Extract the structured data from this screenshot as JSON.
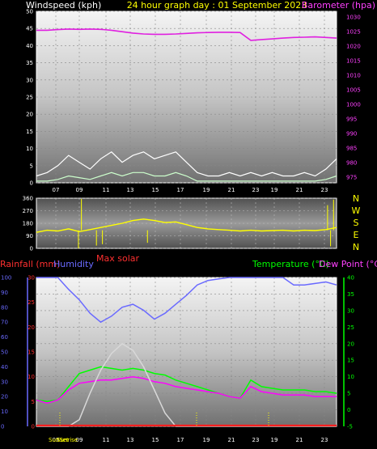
{
  "header": {
    "left_label": "Windspeed (kph)",
    "center_label": "24 hour graph day : 01 September 2023",
    "right_label": "Barometer (hpa)"
  },
  "colors": {
    "background": "#000000",
    "grid": "#888888",
    "wind_avg": "#ccffcc",
    "wind_gust": "#ffffff",
    "barometer": "#e020e0",
    "direction": "#ffff00",
    "humidity": "#6a6aff",
    "temperature": "#00ff00",
    "dewpoint": "#ff00ff",
    "solar": "#d8d8d8",
    "rainfall": "#ff2020",
    "yellow_text": "#ffff00",
    "red_text": "#ff3030",
    "green_text": "#00ff00",
    "magenta_text": "#ff00ff"
  },
  "time_labels": [
    "07",
    "09",
    "11",
    "13",
    "15",
    "17",
    "19",
    "21",
    "23",
    "19",
    "21",
    "23"
  ],
  "compass_labels": [
    "N",
    "W",
    "S",
    "E",
    "N"
  ],
  "bottom_header": {
    "rainfall_label": "Rainfall (mm)",
    "humidity_label": "Humidity",
    "max_solar_label": "Max solar",
    "temperature_label": "Temperature (°C)",
    "dewpoint_label": "Dew Point (°C)"
  },
  "sun_labels": {
    "sunrise": "Sunrise",
    "sunset": "SunSet"
  },
  "chart_data": [
    {
      "type": "line",
      "title": "24 hour graph day : 01 September 2023",
      "ylabel": "Windspeed (kph)",
      "y2label": "Barometer (hpa)",
      "ylim": [
        0,
        50
      ],
      "yticks": [
        0,
        5,
        10,
        15,
        20,
        25,
        30,
        35,
        40,
        45,
        50
      ],
      "y2lim": [
        973,
        1032
      ],
      "y2ticks": [
        975,
        980,
        985,
        990,
        995,
        1000,
        1005,
        1010,
        1015,
        1020,
        1025,
        1030
      ],
      "x_tick_labels": [
        "07",
        "09",
        "11",
        "13",
        "15",
        "17",
        "19",
        "21",
        "23",
        "19",
        "21",
        "23"
      ],
      "series": [
        {
          "name": "Barometer (hpa)",
          "axis": "right",
          "values": [
            1025.5,
            1025.5,
            1025.7,
            1025.9,
            1025.8,
            1025.9,
            1025.8,
            1025.5,
            1025,
            1024.5,
            1024.2,
            1024.1,
            1024.1,
            1024.2,
            1024.4,
            1024.6,
            1024.7,
            1024.8,
            1024.8,
            1024.7,
            1022,
            1022.3,
            1022.5,
            1022.8,
            1023,
            1023.1,
            1023.2,
            1023,
            1022.8
          ]
        },
        {
          "name": "Wind gust",
          "axis": "left",
          "values": [
            2,
            3,
            5,
            8,
            6,
            4,
            7,
            9,
            6,
            8,
            9,
            7,
            8,
            9,
            6,
            3,
            2,
            2,
            3,
            2,
            3,
            2,
            3,
            2,
            2,
            3,
            2,
            4,
            7
          ]
        },
        {
          "name": "Wind average",
          "axis": "left",
          "values": [
            0.5,
            0.5,
            1,
            2,
            1.5,
            1,
            2,
            3,
            2,
            3,
            3,
            2,
            2,
            3,
            2,
            0.5,
            0.5,
            0.5,
            0.5,
            0.5,
            0.5,
            0.5,
            0.5,
            0.5,
            0.5,
            0.5,
            0.5,
            1,
            2
          ]
        }
      ]
    },
    {
      "type": "line",
      "ylabel": "Wind direction",
      "ylim": [
        0,
        360
      ],
      "yticks": [
        0,
        90,
        180,
        270,
        360
      ],
      "series": [
        {
          "name": "Wind direction",
          "values": [
            115,
            130,
            125,
            140,
            120,
            135,
            150,
            165,
            180,
            200,
            210,
            200,
            185,
            190,
            170,
            150,
            140,
            135,
            130,
            125,
            130,
            125,
            128,
            130,
            125,
            130,
            128,
            135,
            150
          ],
          "spikes": [
            0,
            355,
            20,
            30,
            40,
            310,
            15,
            350
          ]
        }
      ]
    },
    {
      "type": "line",
      "ylabel": "Rainfall (mm) / Humidity",
      "y2label": "Temperature (°C) / Dew Point (°C)",
      "ylim": [
        0,
        100
      ],
      "yticks": [
        0,
        5,
        10,
        15,
        20,
        25,
        30
      ],
      "humidity_ticks": [
        0,
        10,
        20,
        30,
        40,
        50,
        60,
        70,
        80,
        90,
        100
      ],
      "y2lim": [
        -5,
        40
      ],
      "y2ticks": [
        -5,
        0,
        5,
        10,
        15,
        20,
        25,
        30,
        35,
        40
      ],
      "x_tick_labels": [
        "07",
        "09",
        "11",
        "13",
        "15",
        "17",
        "19",
        "21",
        "23",
        "19",
        "21",
        "23"
      ],
      "series": [
        {
          "name": "Humidity",
          "axis": "left-outer",
          "values": [
            100,
            100,
            100,
            92,
            85,
            76,
            70,
            74,
            80,
            82,
            78,
            72,
            76,
            82,
            88,
            95,
            98,
            99,
            100,
            100,
            100,
            100,
            100,
            100,
            95,
            95,
            96,
            97,
            95
          ]
        },
        {
          "name": "Temperature (°C)",
          "axis": "right",
          "values": [
            3,
            2.5,
            3,
            7,
            11,
            12,
            13,
            12.5,
            12,
            12.5,
            12,
            11,
            10.5,
            9,
            8,
            7,
            6,
            5,
            4,
            3.5,
            9,
            7,
            6.5,
            6,
            6,
            6,
            5.5,
            5.5,
            5
          ]
        },
        {
          "name": "Dew Point (°C)",
          "axis": "right",
          "values": [
            3,
            2,
            3,
            6,
            8,
            8.5,
            9,
            9,
            9.5,
            10,
            9.5,
            8.5,
            8,
            7,
            6.5,
            6,
            5.5,
            5,
            4,
            3.5,
            7,
            5.5,
            5,
            4.5,
            4.5,
            4.5,
            4,
            4,
            4
          ]
        },
        {
          "name": "Max solar",
          "axis": "right",
          "values": [
            -5,
            -5,
            -5,
            -5,
            -3,
            5,
            12,
            17,
            20,
            18,
            13,
            6,
            -1,
            -5,
            -5,
            -5,
            -5,
            -5,
            -5,
            -5,
            -5,
            -5,
            -5,
            -5,
            -5,
            -5,
            -5,
            -5,
            -5
          ]
        },
        {
          "name": "Rainfall (mm)",
          "axis": "left",
          "values": [
            0,
            0,
            0,
            0,
            0,
            0,
            0,
            0,
            0,
            0,
            0,
            0,
            0,
            0,
            0,
            0,
            0,
            0,
            0,
            0,
            0,
            0,
            0,
            0,
            0,
            0,
            0,
            0,
            0
          ]
        }
      ]
    }
  ]
}
